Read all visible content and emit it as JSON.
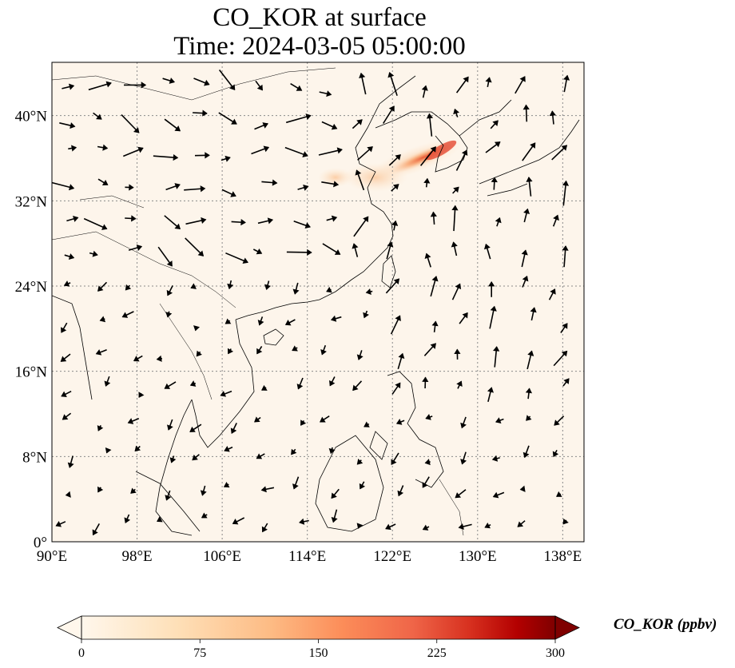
{
  "title": {
    "line1": "CO_KOR at surface",
    "line2": "Time: 2024-03-05 05:00:00"
  },
  "map": {
    "lon_range": [
      90,
      140
    ],
    "lat_range": [
      0,
      45
    ],
    "lon_ticks": [
      {
        "value": 90,
        "label": "90°E"
      },
      {
        "value": 98,
        "label": "98°E"
      },
      {
        "value": 106,
        "label": "106°E"
      },
      {
        "value": 114,
        "label": "114°E"
      },
      {
        "value": 122,
        "label": "122°E"
      },
      {
        "value": 130,
        "label": "130°E"
      },
      {
        "value": 138,
        "label": "138°E"
      }
    ],
    "lat_ticks": [
      {
        "value": 0,
        "label": "0°"
      },
      {
        "value": 8,
        "label": "8°N"
      },
      {
        "value": 16,
        "label": "16°N"
      },
      {
        "value": 24,
        "label": "24°N"
      },
      {
        "value": 32,
        "label": "32°N"
      },
      {
        "value": 40,
        "label": "40°N"
      }
    ],
    "gridlines": true,
    "background_color": "#fdf5eb",
    "coastline_color": "#000000"
  },
  "colorbar": {
    "label": "CO_KOR (ppbv)",
    "min": 0,
    "max": 300,
    "ticks": [
      {
        "value": 0,
        "label": "0"
      },
      {
        "value": 75,
        "label": "75"
      },
      {
        "value": 150,
        "label": "150"
      },
      {
        "value": 225,
        "label": "225"
      },
      {
        "value": 300,
        "label": "300"
      }
    ],
    "colormap": "OrRd",
    "extend": "both"
  }
}
